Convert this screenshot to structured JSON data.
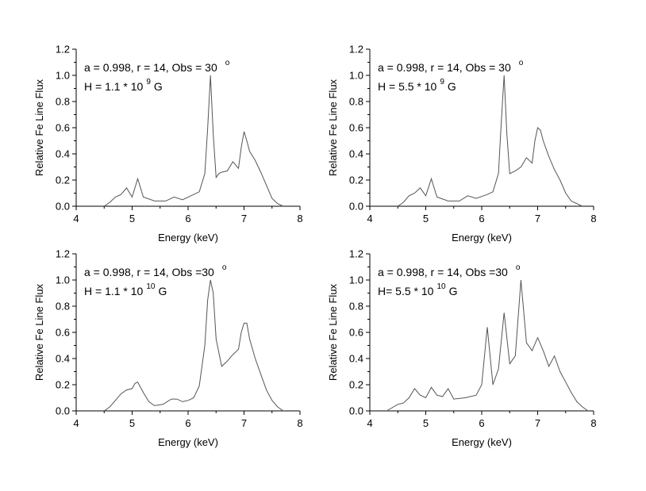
{
  "chart_data": [
    {
      "type": "line",
      "xlabel": "Energy (keV)",
      "ylabel": "Relative Fe Line Flux",
      "xlim": [
        4,
        8
      ],
      "ylim": [
        0,
        1.2
      ],
      "xticks": [
        4,
        5,
        6,
        7,
        8
      ],
      "yticks": [
        0.0,
        0.2,
        0.4,
        0.6,
        0.8,
        1.0,
        1.2
      ],
      "ytick_labels": [
        "0.0",
        "0.2",
        "0.4",
        "0.6",
        "0.8",
        "1.0",
        "1.2"
      ],
      "grid": false,
      "annotation": {
        "line1": "a = 0.998, r = 14, Obs = 30",
        "line1_sup": "o",
        "line2_pre": "H = 1.1 * 10",
        "line2_sup": "9",
        "line2_post": "G"
      },
      "series": [
        {
          "x": [
            4.5,
            4.6,
            4.7,
            4.8,
            4.9,
            5.0,
            5.1,
            5.2,
            5.4,
            5.6,
            5.75,
            5.9,
            6.1,
            6.2,
            6.3,
            6.35,
            6.4,
            6.45,
            6.5,
            6.55,
            6.6,
            6.7,
            6.8,
            6.9,
            6.95,
            7.0,
            7.05,
            7.1,
            7.2,
            7.3,
            7.4,
            7.5,
            7.6,
            7.7
          ],
          "y": [
            0.0,
            0.03,
            0.07,
            0.09,
            0.14,
            0.07,
            0.21,
            0.07,
            0.04,
            0.04,
            0.07,
            0.05,
            0.09,
            0.11,
            0.25,
            0.6,
            1.0,
            0.55,
            0.22,
            0.25,
            0.26,
            0.27,
            0.34,
            0.29,
            0.45,
            0.57,
            0.5,
            0.42,
            0.35,
            0.26,
            0.16,
            0.06,
            0.02,
            0.0
          ]
        }
      ]
    },
    {
      "type": "line",
      "xlabel": "Energy (keV)",
      "ylabel": "Relative Fe Line Flux",
      "xlim": [
        4,
        8
      ],
      "ylim": [
        0,
        1.2
      ],
      "xticks": [
        4,
        5,
        6,
        7,
        8
      ],
      "yticks": [
        0.0,
        0.2,
        0.4,
        0.6,
        0.8,
        1.0,
        1.2
      ],
      "ytick_labels": [
        "0.0",
        "0.2",
        "0.4",
        "0.6",
        "0.8",
        "1.0",
        "1.2"
      ],
      "grid": false,
      "annotation": {
        "line1": "a = 0.998, r = 14, Obs = 30",
        "line1_sup": "o",
        "line2_pre": "H = 5.5 * 10",
        "line2_sup": "9",
        "line2_post": "G"
      },
      "series": [
        {
          "x": [
            4.5,
            4.6,
            4.7,
            4.8,
            4.9,
            5.0,
            5.1,
            5.2,
            5.4,
            5.6,
            5.75,
            5.9,
            6.1,
            6.2,
            6.3,
            6.35,
            6.4,
            6.45,
            6.5,
            6.6,
            6.7,
            6.8,
            6.9,
            6.95,
            7.0,
            7.05,
            7.1,
            7.2,
            7.3,
            7.4,
            7.5,
            7.6,
            7.8
          ],
          "y": [
            0.0,
            0.03,
            0.08,
            0.1,
            0.14,
            0.08,
            0.21,
            0.07,
            0.04,
            0.04,
            0.08,
            0.06,
            0.09,
            0.11,
            0.25,
            0.65,
            1.0,
            0.55,
            0.25,
            0.27,
            0.3,
            0.37,
            0.33,
            0.5,
            0.6,
            0.58,
            0.5,
            0.38,
            0.28,
            0.2,
            0.1,
            0.04,
            0.0
          ]
        }
      ]
    },
    {
      "type": "line",
      "xlabel": "Energy (keV)",
      "ylabel": "Relative Fe Line Flux",
      "xlim": [
        4,
        8
      ],
      "ylim": [
        0,
        1.2
      ],
      "xticks": [
        4,
        5,
        6,
        7,
        8
      ],
      "yticks": [
        0.0,
        0.2,
        0.4,
        0.6,
        0.8,
        1.0,
        1.2
      ],
      "ytick_labels": [
        "0.0",
        "0.2",
        "0.4",
        "0.6",
        "0.8",
        "1.0",
        "1.2"
      ],
      "grid": false,
      "annotation": {
        "line1": "a = 0.998, r = 14, Obs =30",
        "line1_sup": "o",
        "line2_pre": "H = 1.1 * 10",
        "line2_sup": "10",
        "line2_post": "G"
      },
      "series": [
        {
          "x": [
            4.5,
            4.6,
            4.7,
            4.8,
            4.9,
            5.0,
            5.05,
            5.1,
            5.2,
            5.3,
            5.4,
            5.55,
            5.7,
            5.8,
            5.9,
            6.0,
            6.1,
            6.2,
            6.3,
            6.35,
            6.4,
            6.45,
            6.5,
            6.6,
            6.7,
            6.8,
            6.9,
            6.95,
            7.0,
            7.05,
            7.1,
            7.2,
            7.3,
            7.4,
            7.5,
            7.6,
            7.7
          ],
          "y": [
            0.0,
            0.03,
            0.08,
            0.13,
            0.16,
            0.17,
            0.21,
            0.22,
            0.14,
            0.07,
            0.04,
            0.05,
            0.09,
            0.09,
            0.07,
            0.08,
            0.1,
            0.19,
            0.5,
            0.85,
            1.0,
            0.9,
            0.55,
            0.34,
            0.38,
            0.43,
            0.47,
            0.6,
            0.67,
            0.67,
            0.55,
            0.4,
            0.28,
            0.16,
            0.08,
            0.03,
            0.0
          ]
        }
      ]
    },
    {
      "type": "line",
      "xlabel": "Energy (keV)",
      "ylabel": "Relative Fe Line Flux",
      "xlim": [
        4,
        8
      ],
      "ylim": [
        0,
        1.2
      ],
      "xticks": [
        4,
        5,
        6,
        7,
        8
      ],
      "yticks": [
        0.0,
        0.2,
        0.4,
        0.6,
        0.8,
        1.0,
        1.2
      ],
      "ytick_labels": [
        "0.0",
        "0.2",
        "0.4",
        "0.6",
        "0.8",
        "1.0",
        "1.2"
      ],
      "grid": false,
      "annotation": {
        "line1": "a = 0.998, r = 14, Obs =30",
        "line1_sup": "o",
        "line2_pre": "H= 5.5 * 10",
        "line2_sup": "10",
        "line2_post": "G"
      },
      "series": [
        {
          "x": [
            4.3,
            4.5,
            4.6,
            4.7,
            4.8,
            4.9,
            5.0,
            5.1,
            5.2,
            5.3,
            5.4,
            5.5,
            5.7,
            5.9,
            6.0,
            6.1,
            6.2,
            6.3,
            6.4,
            6.5,
            6.6,
            6.7,
            6.8,
            6.9,
            7.0,
            7.1,
            7.2,
            7.3,
            7.4,
            7.5,
            7.6,
            7.7,
            7.8,
            7.9
          ],
          "y": [
            0.0,
            0.05,
            0.06,
            0.1,
            0.17,
            0.12,
            0.1,
            0.18,
            0.12,
            0.11,
            0.17,
            0.09,
            0.1,
            0.12,
            0.2,
            0.64,
            0.2,
            0.32,
            0.75,
            0.36,
            0.42,
            1.0,
            0.52,
            0.46,
            0.56,
            0.46,
            0.34,
            0.42,
            0.3,
            0.22,
            0.14,
            0.07,
            0.03,
            0.0
          ]
        }
      ]
    }
  ]
}
